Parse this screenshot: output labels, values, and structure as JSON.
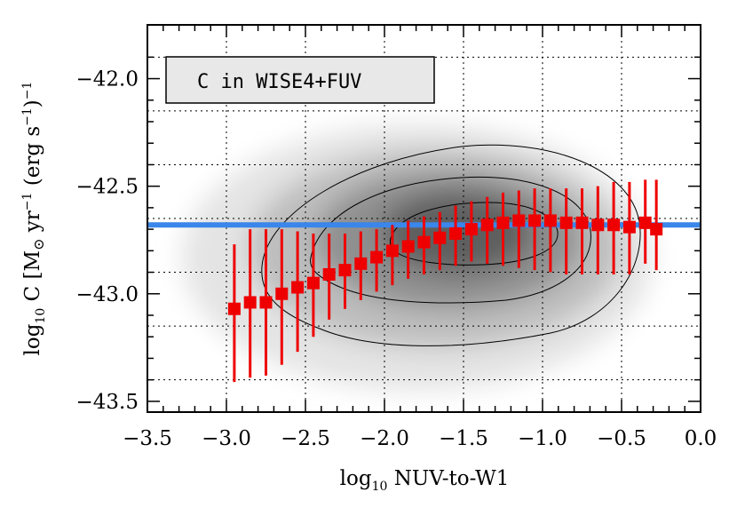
{
  "chart_data": {
    "type": "scatter",
    "title": "",
    "xlabel": "log10 NUV-to-W1",
    "xlabel_parts": {
      "prefix": "log",
      "subscript": "10",
      "rest": " NUV-to-W1"
    },
    "ylabel": "log10 C [M⊙ yr⁻¹ (erg s⁻¹)⁻¹]",
    "ylabel_parts": {
      "prefix": "log",
      "subscript": "10",
      "mid1": " C [M",
      "sun": "⊙",
      "mid2": " yr",
      "exp1": "−1",
      "mid3": " (erg s",
      "exp2": "−1",
      "mid4": ")",
      "exp3": "−1"
    },
    "legend_box": "C in WISE4+FUV",
    "xlim": [
      -3.5,
      0.0
    ],
    "ylim": [
      -43.55,
      -41.75
    ],
    "x_ticks": [
      -3.5,
      -3.0,
      -2.5,
      -2.0,
      -1.5,
      -1.0,
      -0.5,
      0.0
    ],
    "x_tick_labels": [
      "−3.5",
      "−3.0",
      "−2.5",
      "−2.0",
      "−1.5",
      "−1.0",
      "−0.5",
      "0.0"
    ],
    "y_ticks": [
      -43.5,
      -43.0,
      -42.5,
      -42.0
    ],
    "y_tick_labels": [
      "−43.5",
      "−43.0",
      "−42.5",
      "−42.0"
    ],
    "grid": true,
    "reference_line": {
      "y": -42.68,
      "color": "#3a86ea"
    },
    "colors": {
      "points": "#ee0000",
      "density": "#777777",
      "contours": "#000000"
    },
    "series": [
      {
        "marker": "square",
        "x": [
          -2.95,
          -2.85,
          -2.75,
          -2.65,
          -2.55,
          -2.45,
          -2.35,
          -2.25,
          -2.15,
          -2.05,
          -1.95,
          -1.85,
          -1.75,
          -1.65,
          -1.55,
          -1.45,
          -1.35,
          -1.25,
          -1.15,
          -1.05,
          -0.95,
          -0.85,
          -0.75,
          -0.65,
          -0.55,
          -0.45,
          -0.35,
          -0.28
        ],
        "y": [
          -43.07,
          -43.04,
          -43.04,
          -43.0,
          -42.97,
          -42.95,
          -42.91,
          -42.89,
          -42.86,
          -42.83,
          -42.8,
          -42.78,
          -42.76,
          -42.74,
          -42.72,
          -42.7,
          -42.68,
          -42.67,
          -42.66,
          -42.66,
          -42.66,
          -42.67,
          -42.67,
          -42.68,
          -42.68,
          -42.69,
          -42.67,
          -42.7
        ],
        "y_low": [
          -43.41,
          -43.39,
          -43.38,
          -43.33,
          -43.27,
          -43.2,
          -43.12,
          -43.07,
          -43.03,
          -42.99,
          -42.96,
          -42.93,
          -42.91,
          -42.89,
          -42.87,
          -42.85,
          -42.86,
          -42.87,
          -42.88,
          -42.89,
          -42.9,
          -42.91,
          -42.91,
          -42.91,
          -42.91,
          -42.91,
          -42.86,
          -42.89
        ],
        "y_high": [
          -42.77,
          -42.7,
          -42.7,
          -42.7,
          -42.71,
          -42.72,
          -42.72,
          -42.72,
          -42.71,
          -42.7,
          -42.68,
          -42.66,
          -42.64,
          -42.62,
          -42.59,
          -42.57,
          -42.55,
          -42.53,
          -42.52,
          -42.51,
          -42.51,
          -42.51,
          -42.51,
          -42.5,
          -42.48,
          -42.48,
          -42.47,
          -42.47
        ]
      }
    ]
  }
}
